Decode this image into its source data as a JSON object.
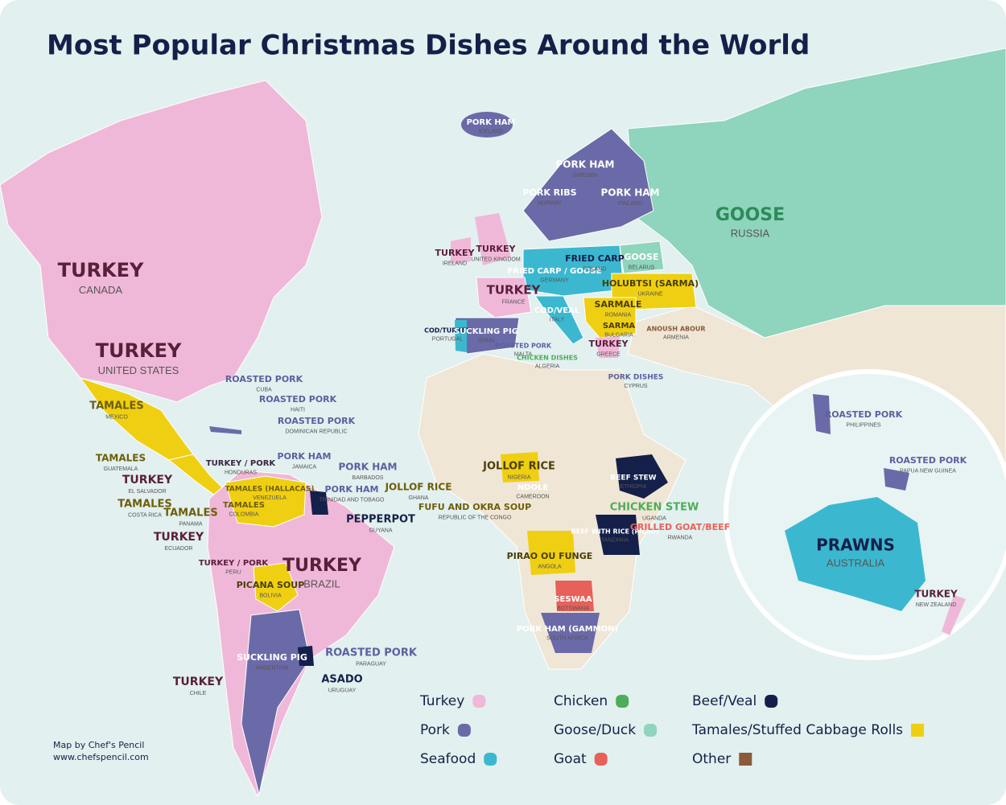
{
  "header": {
    "title": "Most Popular Christmas Dishes Around the World"
  },
  "credits": {
    "line1": "Map by Chef's Pencil",
    "line2": "www.chefspencil.com"
  },
  "legend": {
    "items": [
      {
        "label": "Turkey",
        "color": "#f0b8d8"
      },
      {
        "label": "Pork",
        "color": "#6b6aa8"
      },
      {
        "label": "Seafood",
        "color": "#3bb8d0"
      },
      {
        "label": "Chicken",
        "color": "#4cae5a"
      },
      {
        "label": "Goose/Duck",
        "color": "#8fd4bc"
      },
      {
        "label": "Goat",
        "color": "#e8605a"
      },
      {
        "label": "Beef/Veal",
        "color": "#14204a"
      },
      {
        "label": "Tamales/Stuffed Cabbage Rolls",
        "color": "#efcf12"
      },
      {
        "label": "Other",
        "color": "#8a5a3a"
      }
    ]
  },
  "labels": [
    {
      "dish": "TURKEY",
      "country": "CANADA",
      "color": "#5a1f3a"
    },
    {
      "dish": "TURKEY",
      "country": "UNITED STATES",
      "color": "#5a1f3a"
    },
    {
      "dish": "TAMALES",
      "country": "MEXICO",
      "color": "#6e5e08"
    },
    {
      "dish": "ROASTED PORK",
      "country": "CUBA",
      "color": "#5d5fa0"
    },
    {
      "dish": "ROASTED PORK",
      "country": "HAITI",
      "color": "#5d5fa0"
    },
    {
      "dish": "ROASTED PORK",
      "country": "DOMINICAN REPUBLIC",
      "color": "#5d5fa0"
    },
    {
      "dish": "PORK HAM",
      "country": "JAMAICA",
      "color": "#5d5fa0"
    },
    {
      "dish": "PORK HAM",
      "country": "BARBADOS",
      "color": "#5d5fa0"
    },
    {
      "dish": "PORK HAM",
      "country": "TRINIDAD AND TOBAGO",
      "color": "#5d5fa0"
    },
    {
      "dish": "TAMALES",
      "country": "GUATEMALA",
      "color": "#6e5e08"
    },
    {
      "dish": "TURKEY / PORK",
      "country": "HONDURAS",
      "color": "#3a2540"
    },
    {
      "dish": "TURKEY",
      "country": "EL SALVADOR",
      "color": "#5a1f3a"
    },
    {
      "dish": "TAMALES",
      "country": "COSTA RICA",
      "color": "#6e5e08"
    },
    {
      "dish": "TAMALES",
      "country": "PANAMA",
      "color": "#6e5e08"
    },
    {
      "dish": "TAMALES (HALLACAS)",
      "country": "VENEZUELA",
      "color": "#6e5e08"
    },
    {
      "dish": "TAMALES",
      "country": "COLOMBIA",
      "color": "#6e5e08"
    },
    {
      "dish": "PEPPERPOT",
      "country": "GUYANA",
      "color": "#14204a"
    },
    {
      "dish": "TURKEY",
      "country": "ECUADOR",
      "color": "#5a1f3a"
    },
    {
      "dish": "TURKEY / PORK",
      "country": "PERU",
      "color": "#5a1f3a"
    },
    {
      "dish": "TURKEY",
      "country": "BRAZIL",
      "color": "#5a1f3a"
    },
    {
      "dish": "PICANA SOUP",
      "country": "BOLIVIA",
      "color": "#4a3e05"
    },
    {
      "dish": "ROASTED PORK",
      "country": "PARAGUAY",
      "color": "#5d5fa0"
    },
    {
      "dish": "SUCKLING PIG",
      "country": "ARGENTINA",
      "color": "#ffffff"
    },
    {
      "dish": "ASADO",
      "country": "URUGUAY",
      "color": "#14204a"
    },
    {
      "dish": "TURKEY",
      "country": "CHILE",
      "color": "#5a1f3a"
    },
    {
      "dish": "PORK HAM",
      "country": "ICELAND",
      "color": "#ffffff"
    },
    {
      "dish": "PORK RIBS",
      "country": "NORWAY",
      "color": "#ffffff"
    },
    {
      "dish": "PORK HAM",
      "country": "SWEDEN",
      "color": "#ffffff"
    },
    {
      "dish": "PORK HAM",
      "country": "FINLAND",
      "color": "#ffffff"
    },
    {
      "dish": "GOOSE",
      "country": "RUSSIA",
      "color": "#2e8a5a"
    },
    {
      "dish": "TURKEY",
      "country": "IRELAND",
      "color": "#5a1f3a"
    },
    {
      "dish": "TURKEY",
      "country": "UNITED KINGDOM",
      "color": "#5a1f3a"
    },
    {
      "dish": "FRIED CARP / GOOSE",
      "country": "GERMANY",
      "color": "#ffffff"
    },
    {
      "dish": "FRIED CARP",
      "country": "POLAND",
      "color": "#14204a"
    },
    {
      "dish": "GOOSE",
      "country": "BELARUS",
      "color": "#ffffff"
    },
    {
      "dish": "HOLUBTSI (SARMA)",
      "country": "UKRAINE",
      "color": "#4a3e05"
    },
    {
      "dish": "TURKEY",
      "country": "FRANCE",
      "color": "#5a1f3a"
    },
    {
      "dish": "COD/TURKEY",
      "country": "PORTUGAL",
      "color": "#14204a"
    },
    {
      "dish": "SUCKLING PIG",
      "country": "SPAIN",
      "color": "#ffffff"
    },
    {
      "dish": "COD/VEAL",
      "country": "ITALY",
      "color": "#ffffff"
    },
    {
      "dish": "SARMALE",
      "country": "ROMANIA",
      "color": "#4a3e05"
    },
    {
      "dish": "SARMA",
      "country": "BULGARIA",
      "color": "#4a3e05"
    },
    {
      "dish": "TURKEY",
      "country": "GREECE",
      "color": "#5a1f3a"
    },
    {
      "dish": "ROASTED PORK",
      "country": "MALTA",
      "color": "#5d5fa0"
    },
    {
      "dish": "CHICKEN DISHES",
      "country": "ALGERIA",
      "color": "#4cae5a"
    },
    {
      "dish": "PORK DISHES",
      "country": "CYPRUS",
      "color": "#5d5fa0"
    },
    {
      "dish": "ANOUSH ABOUR",
      "country": "ARMENIA",
      "color": "#8a5a3a"
    },
    {
      "dish": "JOLLOF RICE",
      "country": "GHANA",
      "color": "#6e5e08"
    },
    {
      "dish": "JOLLOF RICE",
      "country": "NIGERIA",
      "color": "#4a3e05"
    },
    {
      "dish": "NDOLE",
      "country": "CAMEROON",
      "color": "#ffffff"
    },
    {
      "dish": "FUFU AND OKRA SOUP",
      "country": "REPUBLIC OF THE CONGO",
      "color": "#6e5e08"
    },
    {
      "dish": "BEEF STEW",
      "country": "ETHIOPIA",
      "color": "#ffffff"
    },
    {
      "dish": "CHICKEN STEW",
      "country": "UGANDA",
      "color": "#4cae5a"
    },
    {
      "dish": "BEEF WITH RICE (PILAU)",
      "country": "TANZANIA",
      "color": "#ffffff"
    },
    {
      "dish": "GRILLED GOAT/BEEF",
      "country": "RWANDA",
      "color": "#e8605a"
    },
    {
      "dish": "PIRAO OU FUNGE",
      "country": "ANGOLA",
      "color": "#4a3e05"
    },
    {
      "dish": "SESWAA",
      "country": "BOTSWANA",
      "color": "#ffffff"
    },
    {
      "dish": "PORK HAM (GAMMON)",
      "country": "SOUTH AFRICA",
      "color": "#ffffff"
    },
    {
      "dish": "ROASTED PORK",
      "country": "PHILIPPINES",
      "color": "#5d5fa0"
    },
    {
      "dish": "ROASTED PORK",
      "country": "PAPUA NEW GUINEA",
      "color": "#5d5fa0"
    },
    {
      "dish": "PRAWNS",
      "country": "AUSTRALIA",
      "color": "#14204a"
    },
    {
      "dish": "TURKEY",
      "country": "NEW ZEALAND",
      "color": "#5a1f3a"
    }
  ]
}
